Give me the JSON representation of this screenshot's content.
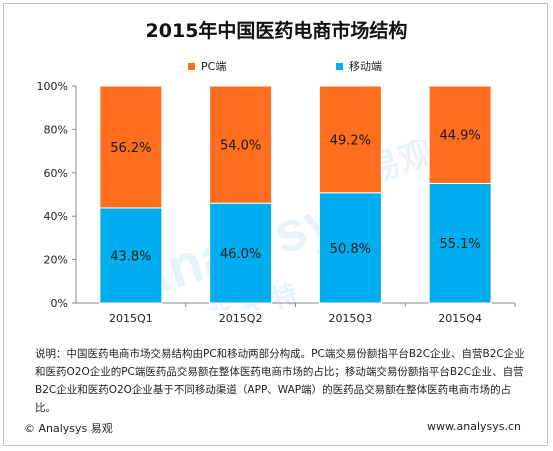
{
  "title": "2015年中国医药电商市场结构",
  "legend": [
    {
      "label": "PC端",
      "color": "#ff6d1e"
    },
    {
      "label": "移动端",
      "color": "#00adee"
    }
  ],
  "chart_data": {
    "type": "bar",
    "stacked": true,
    "title": "2015年中国医药电商市场结构",
    "categories": [
      "2015Q1",
      "2015Q2",
      "2015Q3",
      "2015Q4"
    ],
    "series": [
      {
        "name": "移动端",
        "values": [
          43.8,
          46.0,
          50.8,
          55.1
        ],
        "labels": [
          "43.8%",
          "46.0%",
          "50.8%",
          "55.1%"
        ],
        "color": "#00adee"
      },
      {
        "name": "PC端",
        "values": [
          56.2,
          54.0,
          49.2,
          44.9
        ],
        "labels": [
          "56.2%",
          "54.0%",
          "49.2%",
          "44.9%"
        ],
        "color": "#ff6d1e"
      }
    ],
    "ylim": [
      0,
      100
    ],
    "yticks": [
      "0%",
      "20%",
      "40%",
      "60%",
      "80%",
      "100%"
    ],
    "legend_position": "top",
    "grid": false
  },
  "note": "说明：中国医药电商市场交易结构由PC和移动两部分构成。PC端交易份额指平台B2C企业、自营B2C企业和医药O2O企业的PC端医药品交易额在整体医药电商市场的占比；移动端交易份额指平台B2C企业、自营B2C企业和医药O2O企业基于不同移动渠道（APP、WAP端）的医药品交易额在整体医药电商市场的占比。",
  "footer": {
    "left": "© Analysys 易观",
    "right": "www.analysys.cn"
  },
  "watermark": {
    "brand": "Analysys",
    "cn": "易观",
    "motto": "指 数 长 特"
  }
}
